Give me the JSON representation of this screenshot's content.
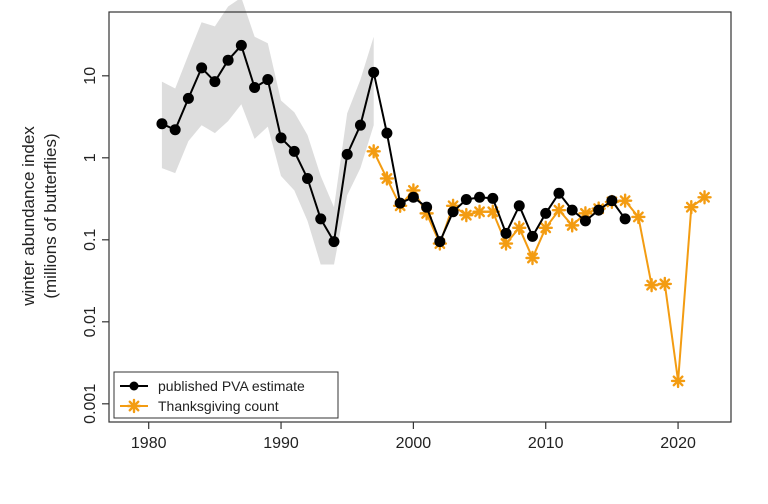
{
  "chart_data": {
    "type": "line",
    "yscale": "log",
    "ylabel_line1": "winter abundance index",
    "ylabel_line2": "(millions of butterflies)",
    "xlabel": "",
    "xlim": [
      1977,
      2024
    ],
    "ylim": [
      0.0006,
      60
    ],
    "x_ticks": [
      {
        "value": 1980,
        "label": "1980"
      },
      {
        "value": 1990,
        "label": "1990"
      },
      {
        "value": 2000,
        "label": "2000"
      },
      {
        "value": 2010,
        "label": "2010"
      },
      {
        "value": 2020,
        "label": "2020"
      }
    ],
    "y_ticks": [
      {
        "value": 10,
        "label": "10"
      },
      {
        "value": 1,
        "label": "1"
      },
      {
        "value": 0.1,
        "label": "0.1"
      },
      {
        "value": 0.01,
        "label": "0.01"
      },
      {
        "value": 0.001,
        "label": "0.001"
      }
    ],
    "grid": false,
    "legend_position": "bottom-left",
    "series": [
      {
        "name": "published PVA estimate",
        "color": "#000000",
        "marker": "circle",
        "x": [
          1981,
          1982,
          1983,
          1984,
          1985,
          1986,
          1987,
          1988,
          1989,
          1990,
          1991,
          1992,
          1993,
          1994,
          1995,
          1996,
          1997,
          1998,
          1999,
          2000,
          2001,
          2002,
          2003,
          2004,
          2005,
          2006,
          2007,
          2008,
          2009,
          2010,
          2011,
          2012,
          2013,
          2014,
          2015,
          2016
        ],
        "values": [
          2.6,
          2.2,
          5.3,
          12.5,
          8.5,
          15.5,
          23.5,
          7.2,
          9.0,
          1.75,
          1.2,
          0.56,
          0.18,
          0.095,
          1.1,
          2.5,
          11.0,
          2.0,
          0.28,
          0.33,
          0.25,
          0.095,
          0.22,
          0.31,
          0.33,
          0.32,
          0.12,
          0.26,
          0.11,
          0.21,
          0.37,
          0.23,
          0.17,
          0.23,
          0.3,
          0.18
        ]
      },
      {
        "name": "Thanksgiving count",
        "color": "#f39c12",
        "marker": "asterisk",
        "x": [
          1997,
          1998,
          1999,
          2000,
          2001,
          2002,
          2003,
          2004,
          2005,
          2006,
          2007,
          2008,
          2009,
          2010,
          2011,
          2012,
          2013,
          2014,
          2015,
          2016,
          2017,
          2018,
          2019,
          2020,
          2021,
          2022
        ],
        "values": [
          1.2,
          0.56,
          0.26,
          0.4,
          0.21,
          0.09,
          0.26,
          0.2,
          0.22,
          0.22,
          0.09,
          0.14,
          0.06,
          0.14,
          0.23,
          0.15,
          0.21,
          0.24,
          0.29,
          0.3,
          0.19,
          0.028,
          0.029,
          0.0019,
          0.25,
          0.33
        ]
      }
    ],
    "confidence_band": {
      "color": "#dddddd",
      "x": [
        1981,
        1982,
        1983,
        1984,
        1985,
        1986,
        1987,
        1988,
        1989,
        1990,
        1991,
        1992,
        1993,
        1994,
        1995,
        1996,
        1997
      ],
      "lower": [
        0.75,
        0.65,
        1.6,
        2.5,
        2.0,
        2.8,
        4.5,
        1.7,
        2.4,
        0.6,
        0.4,
        0.17,
        0.05,
        0.05,
        0.35,
        0.75,
        2.5
      ],
      "upper": [
        8.5,
        7.0,
        18.0,
        45.0,
        40.0,
        70.0,
        90.0,
        30.0,
        25.0,
        5.0,
        3.6,
        1.9,
        0.6,
        0.25,
        3.5,
        9.0,
        30.0
      ]
    }
  }
}
